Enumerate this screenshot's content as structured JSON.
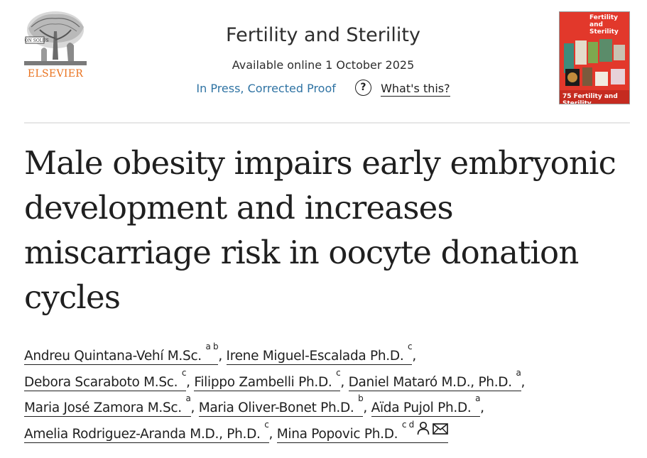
{
  "publisher": {
    "name": "ELSEVIER",
    "logo_icon": "elsevier-tree-icon"
  },
  "journal": {
    "title": "Fertility and Sterility",
    "availability": "Available online 1 October 2025",
    "status": "In Press, Corrected Proof",
    "help_label": "?",
    "help_link": "What's this?",
    "cover": {
      "title": "Fertility and Sterility",
      "footer": "75 Fertility and Sterility",
      "background": "#e2382b"
    }
  },
  "article": {
    "title": "Male obesity impairs early embryonic development and increases miscarriage risk in oocyte donation cycles"
  },
  "authors": [
    {
      "name": "Andreu Quintana-Vehí M.Sc.",
      "aff": "a b",
      "sep": ", "
    },
    {
      "name": "Irene Miguel-Escalada Ph.D.",
      "aff": "c",
      "sep": ","
    },
    {
      "name": "Debora Scaraboto M.Sc.",
      "aff": "c",
      "sep": ", "
    },
    {
      "name": "Filippo Zambelli Ph.D.",
      "aff": "c",
      "sep": ", "
    },
    {
      "name": "Daniel Mataró M.D., Ph.D.",
      "aff": "a",
      "sep": ","
    },
    {
      "name": "Maria José Zamora M.Sc.",
      "aff": "a",
      "sep": ", "
    },
    {
      "name": "Maria Oliver-Bonet Ph.D.",
      "aff": "b",
      "sep": ", "
    },
    {
      "name": "Aïda Pujol Ph.D.",
      "aff": "a",
      "sep": ","
    },
    {
      "name": "Amelia Rodriguez-Aranda M.D., Ph.D.",
      "aff": "c",
      "sep": ", "
    },
    {
      "name": "Mina Popovic Ph.D.",
      "aff": "c d",
      "sep": "",
      "icons": [
        "person-icon",
        "envelope-icon"
      ]
    }
  ],
  "colors": {
    "link_blue": "#2f73a3",
    "elsevier_orange": "#e9711c",
    "text": "#1f1f1f"
  }
}
